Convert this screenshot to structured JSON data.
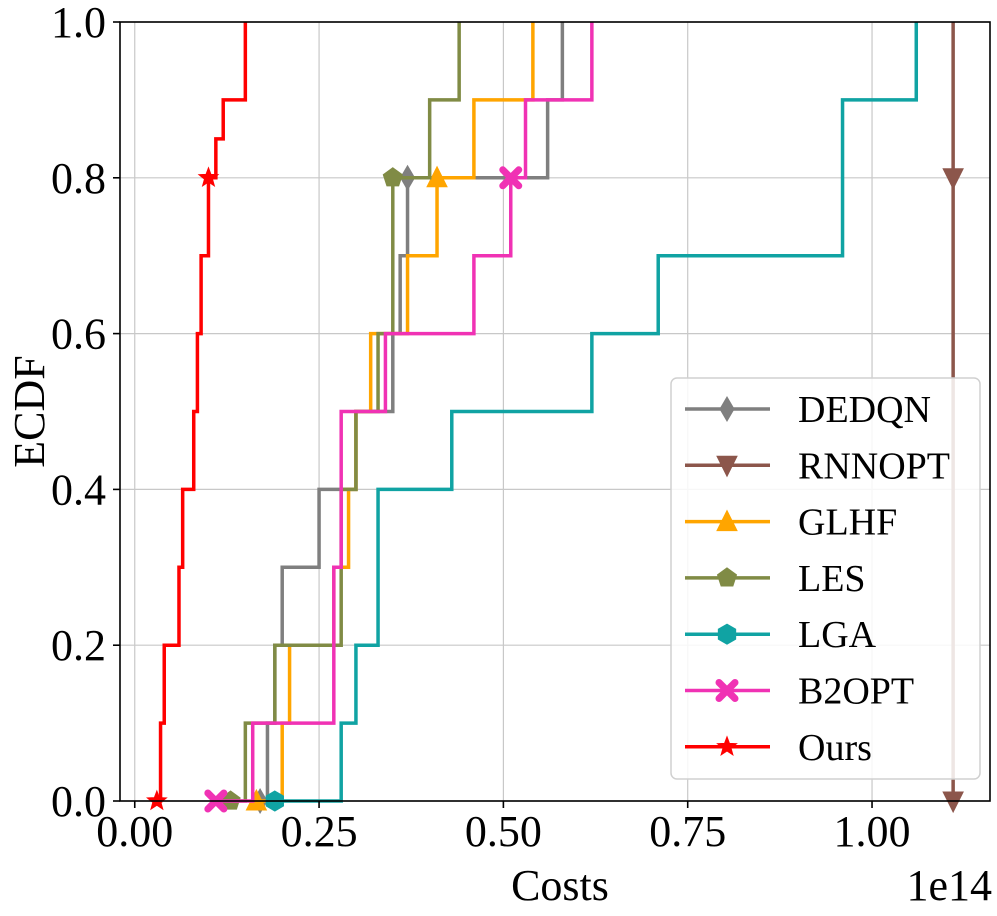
{
  "chart_data": {
    "type": "line",
    "drawstyle": "steps-post",
    "xlabel": "Costs",
    "ylabel": "ECDF",
    "offset_label": "1e14",
    "x_scale": 100000000000000.0,
    "xlim": [
      -0.02,
      1.16
    ],
    "ylim": [
      0.0,
      1.0
    ],
    "xticks": [
      0.0,
      0.25,
      0.5,
      0.75,
      1.0
    ],
    "xtick_labels": [
      "0.00",
      "0.25",
      "0.50",
      "0.75",
      "1.00"
    ],
    "yticks": [
      0.0,
      0.2,
      0.4,
      0.6,
      0.8,
      1.0
    ],
    "ytick_labels": [
      "0.0",
      "0.2",
      "0.4",
      "0.6",
      "0.8",
      "1.0"
    ],
    "grid": true,
    "legend_position": "lower-right",
    "marker_every": [
      0,
      8
    ],
    "series": [
      {
        "name": "DEDQN",
        "color": "#7f7f7f",
        "marker": "thin-diamond",
        "x": [
          0.17,
          0.18,
          0.19,
          0.2,
          0.25,
          0.3,
          0.35,
          0.36,
          0.37,
          0.56,
          0.58
        ],
        "y": [
          0.0,
          0.1,
          0.2,
          0.3,
          0.4,
          0.5,
          0.6,
          0.7,
          0.8,
          0.9,
          1.0
        ]
      },
      {
        "name": "RNNOPT",
        "color": "#8c564b",
        "marker": "triangle-down",
        "x": [
          1.11,
          1.11,
          1.11,
          1.11,
          1.11,
          1.11,
          1.11,
          1.11,
          1.11,
          1.11,
          1.11
        ],
        "y": [
          0.0,
          0.1,
          0.2,
          0.3,
          0.4,
          0.5,
          0.6,
          0.7,
          0.8,
          0.9,
          1.0
        ]
      },
      {
        "name": "GLHF",
        "color": "#ffa500",
        "marker": "triangle-up",
        "x": [
          0.165,
          0.2,
          0.21,
          0.27,
          0.29,
          0.3,
          0.32,
          0.37,
          0.41,
          0.46,
          0.54
        ],
        "y": [
          0.0,
          0.1,
          0.2,
          0.3,
          0.4,
          0.5,
          0.6,
          0.7,
          0.8,
          0.9,
          1.0
        ]
      },
      {
        "name": "LES",
        "color": "#808b45",
        "marker": "pentagon",
        "x": [
          0.13,
          0.15,
          0.19,
          0.28,
          0.3,
          0.33,
          0.35,
          0.4,
          0.44
        ],
        "y": [
          0.0,
          0.1,
          0.2,
          0.4,
          0.5,
          0.6,
          0.8,
          0.9,
          1.0
        ]
      },
      {
        "name": "LGA",
        "color": "#10a3a3",
        "marker": "hexagon",
        "x": [
          0.19,
          0.28,
          0.3,
          0.33,
          0.43,
          0.62,
          0.71,
          0.96,
          1.06
        ],
        "y": [
          0.0,
          0.1,
          0.2,
          0.4,
          0.5,
          0.6,
          0.7,
          0.9,
          1.0
        ]
      },
      {
        "name": "B2OPT",
        "color": "#f032b4",
        "marker": "x-filled",
        "x": [
          0.11,
          0.16,
          0.27,
          0.28,
          0.34,
          0.46,
          0.51,
          0.53,
          0.62
        ],
        "y": [
          0.0,
          0.1,
          0.3,
          0.5,
          0.6,
          0.7,
          0.8,
          0.9,
          1.0
        ]
      },
      {
        "name": "Ours",
        "color": "#ff0000",
        "marker": "star",
        "x": [
          0.03,
          0.035,
          0.04,
          0.06,
          0.065,
          0.08,
          0.085,
          0.09,
          0.1,
          0.11,
          0.12,
          0.15
        ],
        "y": [
          0.0,
          0.1,
          0.2,
          0.3,
          0.4,
          0.5,
          0.6,
          0.7,
          0.8,
          0.85,
          0.9,
          1.0
        ]
      }
    ]
  }
}
